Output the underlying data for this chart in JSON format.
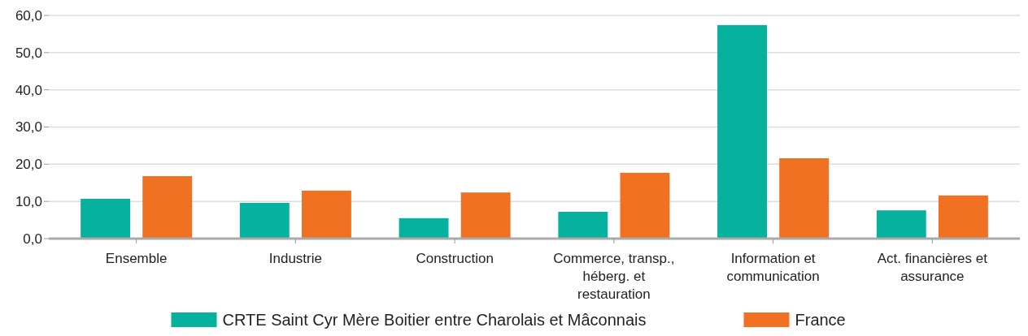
{
  "chart_data": {
    "type": "bar",
    "categories": [
      "Ensemble",
      "Industrie",
      "Construction",
      "Commerce, transp., héberg. et restauration",
      "Information et communication",
      "Act. financières et assurance"
    ],
    "series": [
      {
        "name": "CRTE Saint Cyr Mère Boitier entre Charolais et Mâconnais",
        "color": "#06b29e",
        "values": [
          10.7,
          9.6,
          5.5,
          7.2,
          57.4,
          7.6
        ]
      },
      {
        "name": "France",
        "color": "#f07122",
        "values": [
          16.8,
          12.9,
          12.4,
          17.7,
          21.6,
          11.6
        ]
      }
    ],
    "ylim": [
      0,
      60
    ],
    "yticks": [
      {
        "value": 0,
        "label": "0,0"
      },
      {
        "value": 10,
        "label": "10,0"
      },
      {
        "value": 20,
        "label": "20,0"
      },
      {
        "value": 30,
        "label": "30,0"
      },
      {
        "value": 40,
        "label": "40,0"
      },
      {
        "value": 50,
        "label": "50,0"
      },
      {
        "value": 60,
        "label": "60,0"
      }
    ],
    "grid": "y",
    "legend": "bottom"
  }
}
